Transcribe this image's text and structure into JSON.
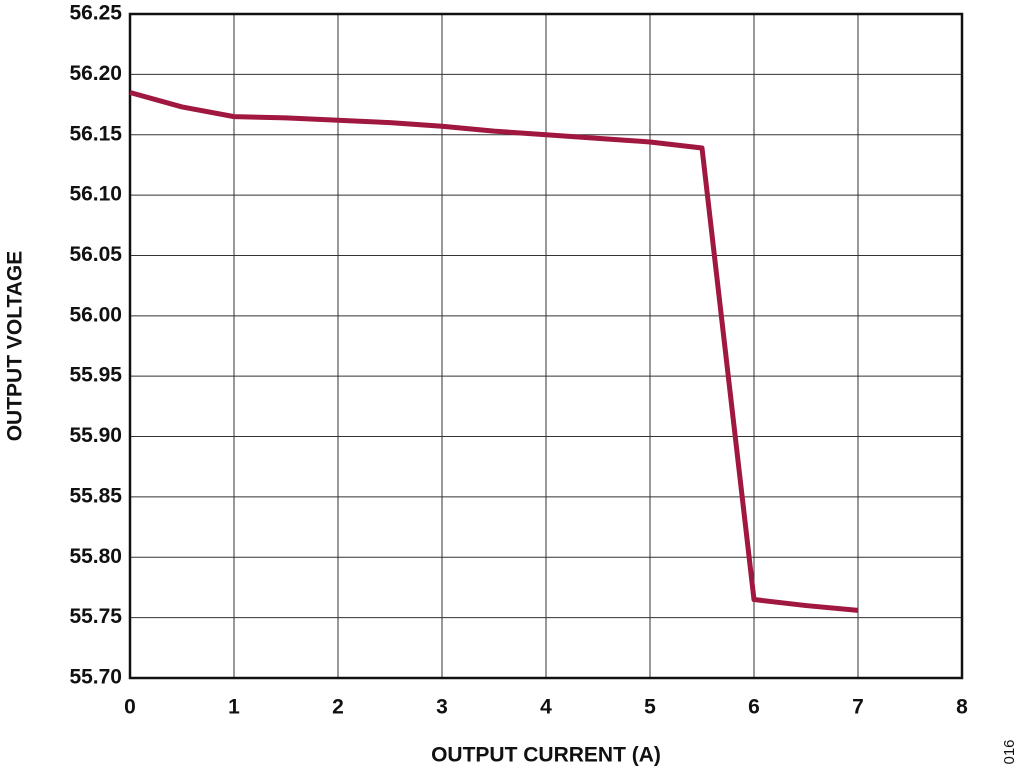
{
  "chart_data": {
    "type": "line",
    "xlabel": "OUTPUT CURRENT (A)",
    "ylabel": "OUTPUT VOLTAGE",
    "annotation": "016",
    "x": [
      0,
      0.5,
      1,
      1.5,
      2,
      2.5,
      3,
      3.5,
      4,
      4.5,
      5,
      5.5,
      6,
      6.5,
      7
    ],
    "values": [
      56.185,
      56.173,
      56.165,
      56.164,
      56.162,
      56.16,
      56.157,
      56.153,
      56.15,
      56.147,
      56.144,
      56.139,
      55.765,
      55.76,
      55.756
    ],
    "color": "#a0173f",
    "xlim": [
      0,
      8
    ],
    "xticks": [
      0,
      1,
      2,
      3,
      4,
      5,
      6,
      7,
      8
    ],
    "ylim": [
      55.7,
      56.25
    ],
    "yticks": [
      {
        "value": 55.7,
        "label": "55.70"
      },
      55.75,
      {
        "value": 55.8,
        "label": "55.80"
      },
      55.85,
      {
        "value": 55.9,
        "label": "55.90"
      },
      55.95,
      {
        "value": 56.0,
        "label": "56.00"
      },
      56.05,
      {
        "value": 56.1,
        "label": "56.10"
      },
      56.15,
      {
        "value": 56.2,
        "label": "56.20"
      },
      56.25
    ],
    "grid": true
  }
}
